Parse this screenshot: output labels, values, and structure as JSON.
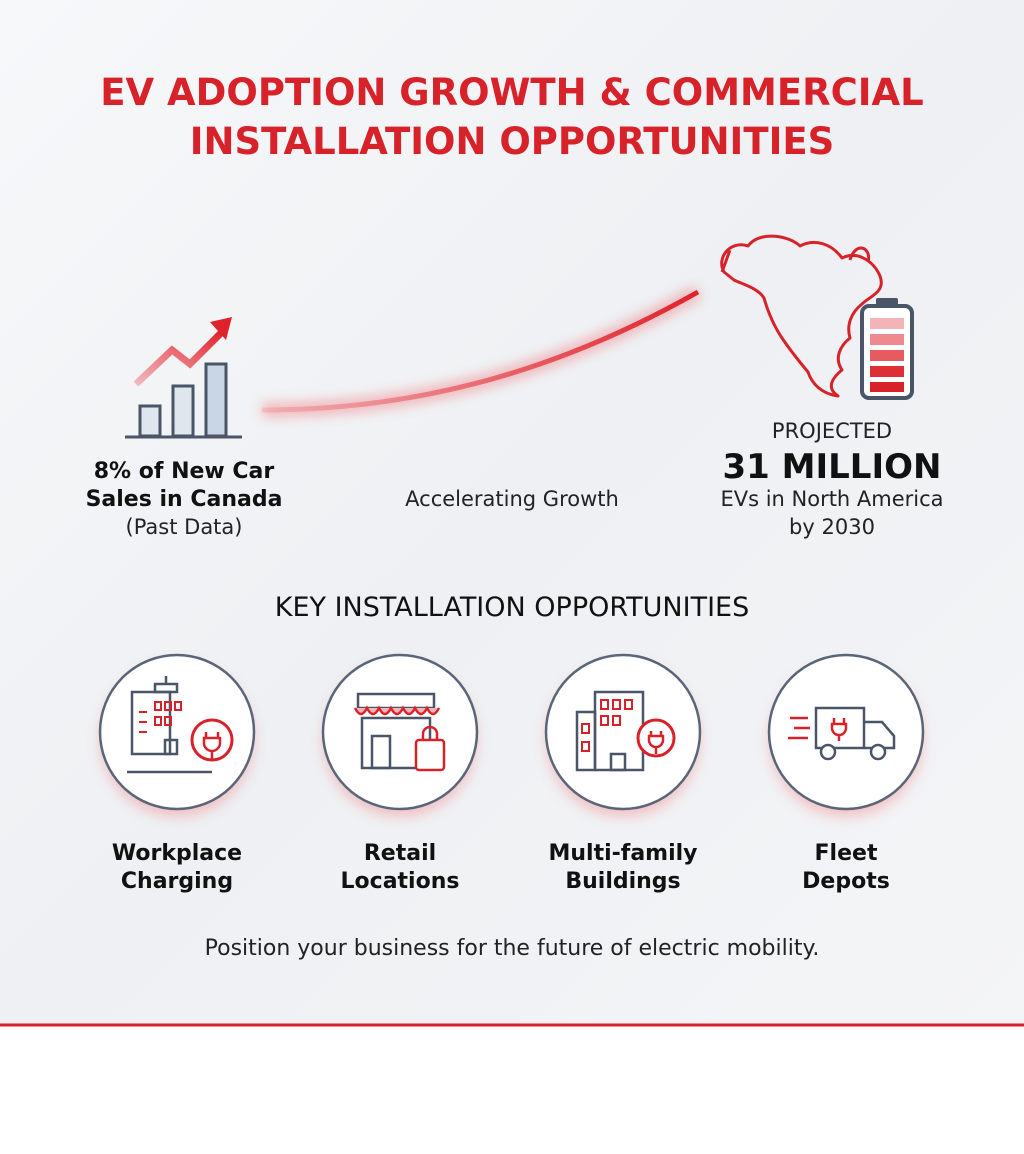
{
  "header": {
    "title_lines": [
      "EV ADOPTION GROWTH & COMMERCIAL",
      "INSTALLATION OPPORTUNITIES"
    ]
  },
  "past_stat": {
    "lines": [
      "8% of New Car",
      "Sales in Canada"
    ],
    "note": "(Past Data)"
  },
  "trend_label": "Accelerating Growth",
  "projection": {
    "kicker": "PROJECTED",
    "figure": "31 MILLION",
    "lines": [
      "EVs in North America",
      "by 2030"
    ]
  },
  "opportunities": {
    "heading": "KEY INSTALLATION OPPORTUNITIES",
    "items": [
      {
        "lines": [
          "Workplace",
          "Charging"
        ]
      },
      {
        "lines": [
          "Retail",
          "Locations"
        ]
      },
      {
        "lines": [
          "Multi-family",
          "Buildings"
        ]
      },
      {
        "lines": [
          "Fleet",
          "Depots"
        ]
      }
    ]
  },
  "footer": "Position your business for the future of electric mobility."
}
